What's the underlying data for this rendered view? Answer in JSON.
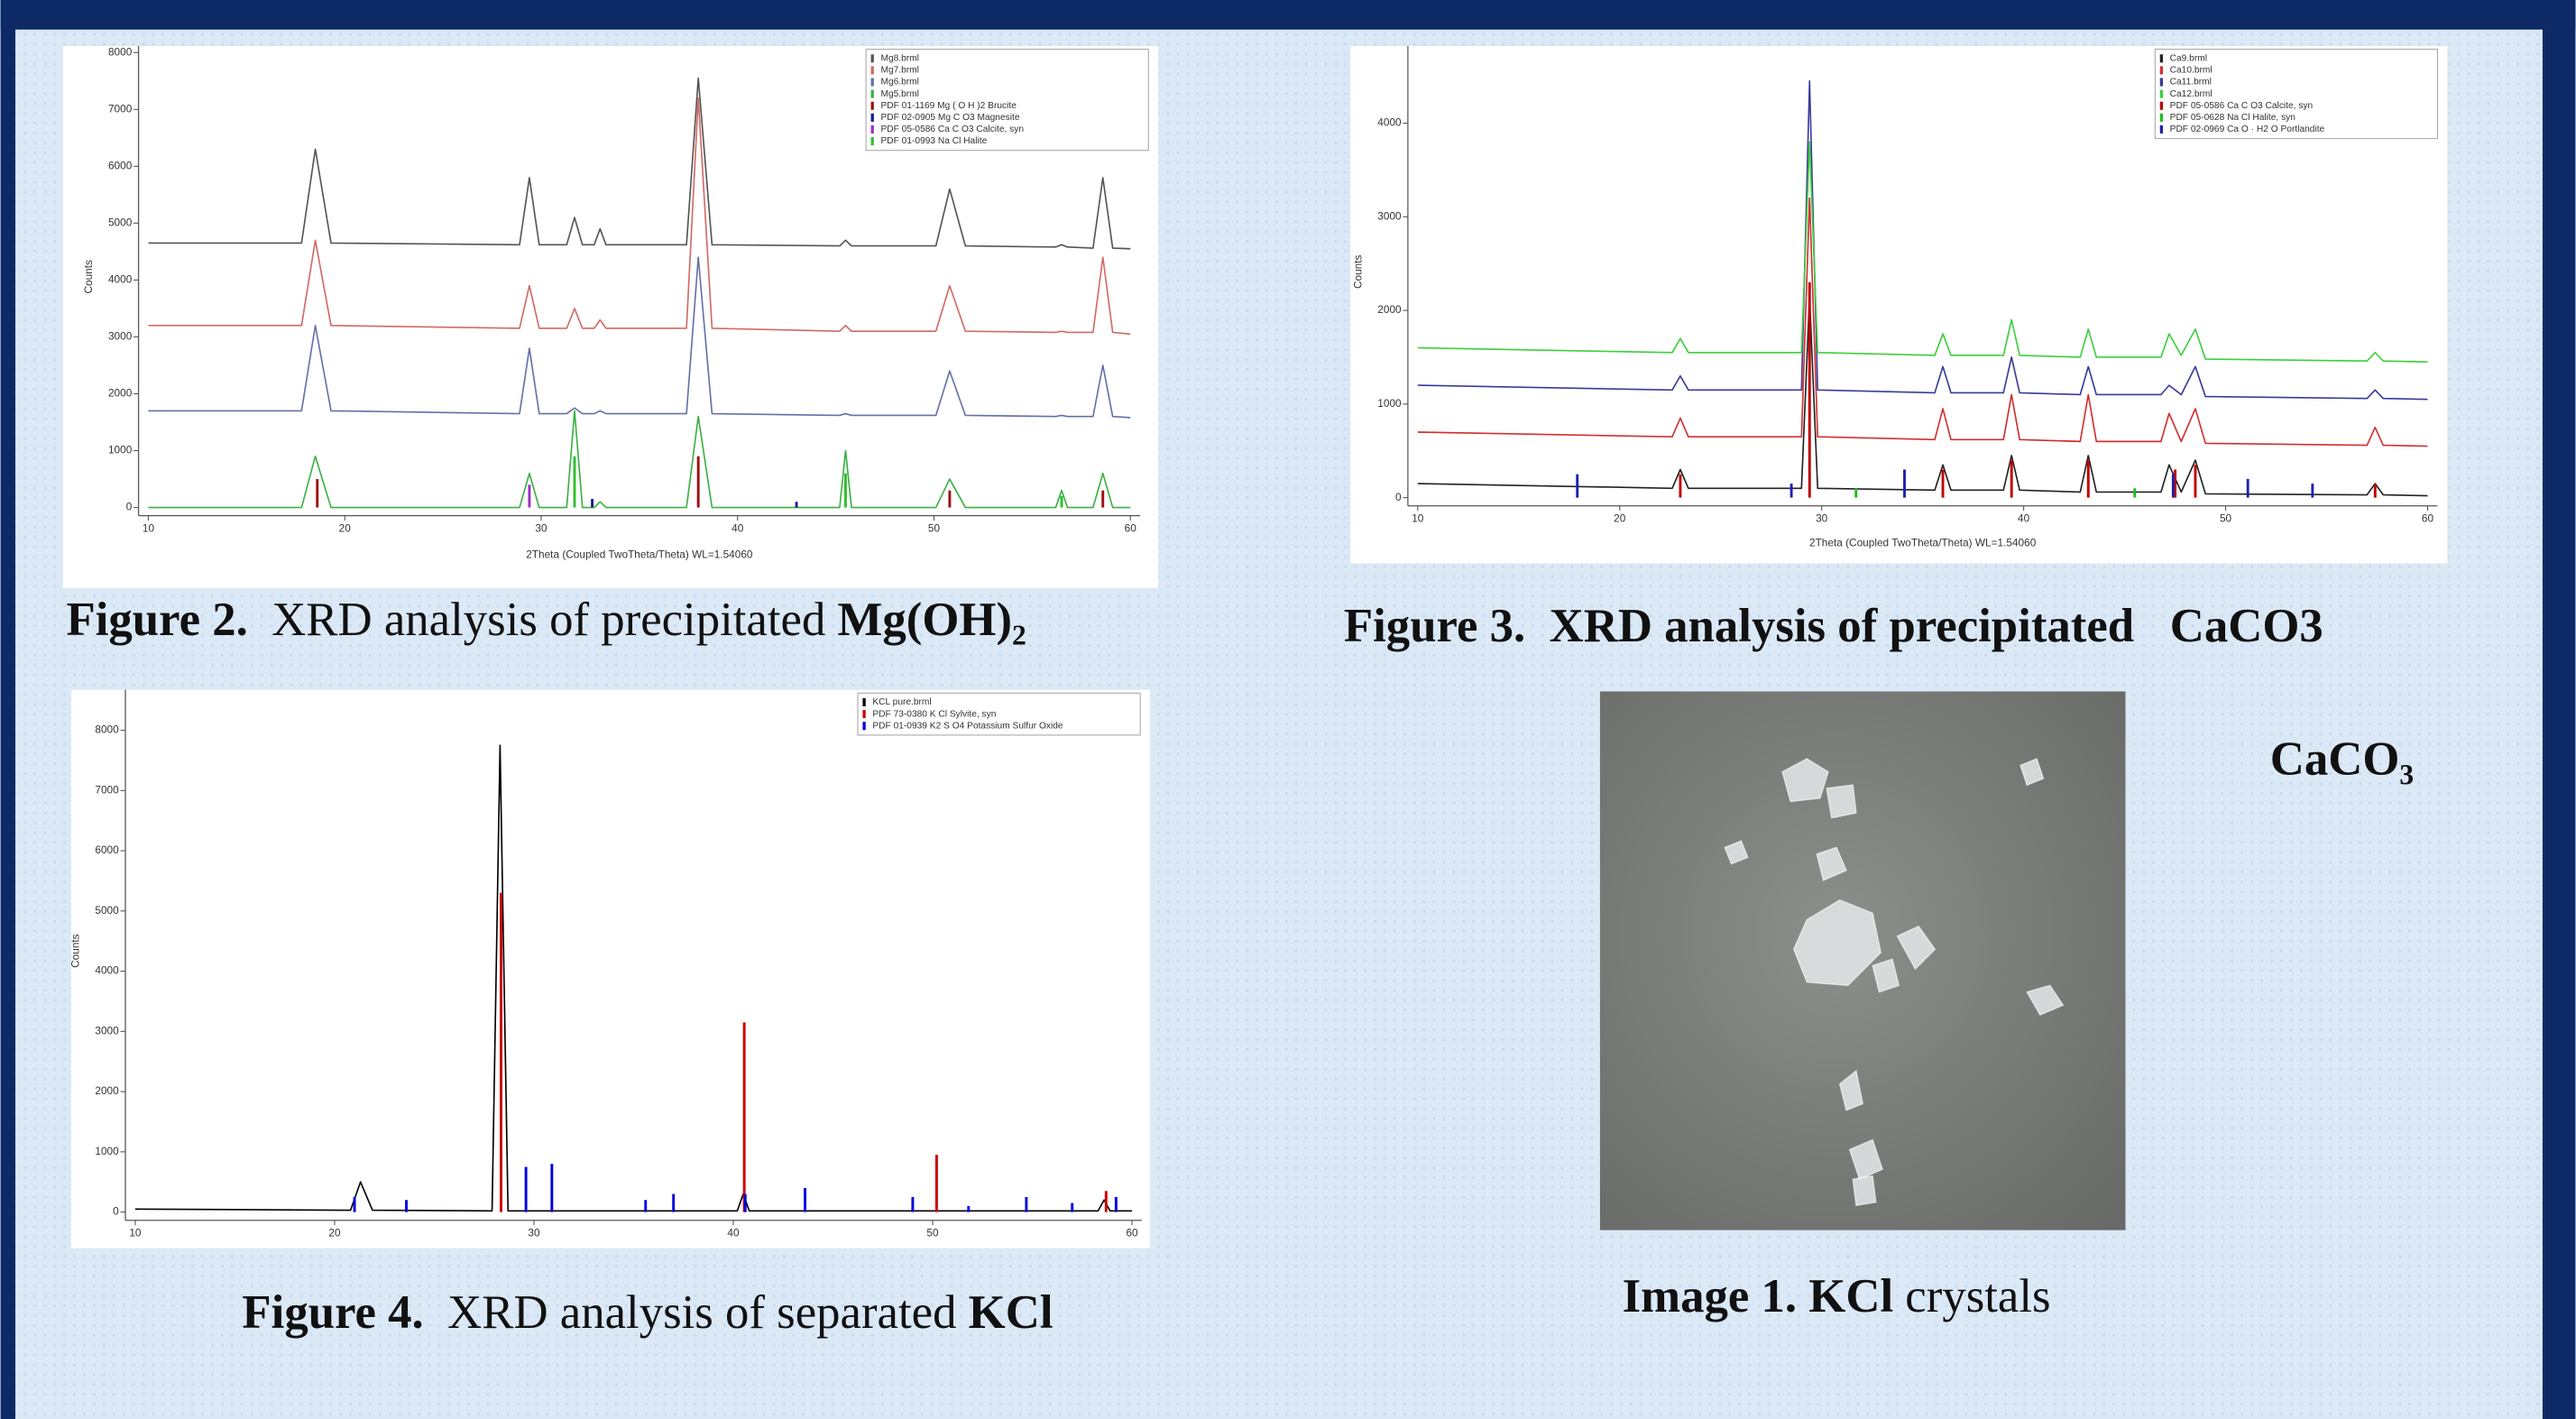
{
  "chart_data": [
    {
      "type": "line",
      "xlabel": "2Theta (Coupled TwoTheta/Theta) WL=1.54060",
      "ylabel": "Counts",
      "xlim": [
        10,
        60
      ],
      "ylim": [
        0,
        8000
      ],
      "xticks": [
        10,
        20,
        30,
        40,
        50,
        60
      ],
      "yticks": [
        0,
        1000,
        2000,
        3000,
        4000,
        5000,
        6000,
        7000,
        8000
      ],
      "legend": "upper right",
      "x": [
        10,
        17.8,
        18.5,
        19.3,
        28.9,
        29.4,
        29.9,
        31.3,
        31.7,
        32.1,
        32.7,
        33,
        33.3,
        37.4,
        38,
        38.7,
        45.2,
        45.5,
        45.8,
        50.1,
        50.8,
        51.6,
        56.2,
        56.5,
        56.8,
        58.1,
        58.6,
        59.1,
        60
      ],
      "series": [
        {
          "name": "Mg8.brml",
          "color": "#555555",
          "style": "line",
          "values": [
            4650,
            4650,
            6300,
            4650,
            4620,
            5800,
            4620,
            4620,
            5100,
            4620,
            4620,
            4900,
            4620,
            4620,
            7550,
            4620,
            4600,
            4700,
            4600,
            4600,
            5600,
            4600,
            4580,
            4620,
            4580,
            4560,
            5800,
            4560,
            4550
          ]
        },
        {
          "name": "Mg7.brml",
          "color": "#d06a66",
          "style": "line",
          "values": [
            3200,
            3200,
            4700,
            3200,
            3150,
            3900,
            3150,
            3150,
            3500,
            3150,
            3150,
            3300,
            3150,
            3150,
            7200,
            3150,
            3100,
            3200,
            3100,
            3100,
            3900,
            3100,
            3080,
            3100,
            3080,
            3080,
            4400,
            3080,
            3050
          ]
        },
        {
          "name": "Mg6.brml",
          "color": "#6670a8",
          "style": "line",
          "values": [
            1700,
            1700,
            3200,
            1700,
            1650,
            2800,
            1650,
            1650,
            1750,
            1650,
            1650,
            1700,
            1650,
            1650,
            4400,
            1650,
            1620,
            1650,
            1620,
            1620,
            2400,
            1620,
            1600,
            1620,
            1600,
            1600,
            2500,
            1600,
            1580
          ]
        },
        {
          "name": "Mg5.brml",
          "color": "#3cb043",
          "style": "line",
          "values": [
            0,
            0,
            900,
            0,
            0,
            600,
            0,
            0,
            1700,
            0,
            0,
            100,
            0,
            0,
            1600,
            0,
            0,
            1000,
            0,
            0,
            500,
            0,
            0,
            300,
            0,
            0,
            600,
            0,
            0
          ]
        },
        {
          "name": "PDF 01-1169 Mg ( O H )2 Brucite",
          "color": "#a01010",
          "style": "sticks",
          "x": [
            18.6,
            38,
            50.8,
            58.6
          ],
          "values": [
            500,
            900,
            300,
            300
          ]
        },
        {
          "name": "PDF 02-0905 Mg C O3 Magnesite",
          "color": "#1a1a8c",
          "style": "sticks",
          "x": [
            32.6,
            43
          ],
          "values": [
            150,
            100
          ]
        },
        {
          "name": "PDF 05-0586 Ca C O3 Calcite, syn",
          "color": "#9b30c0",
          "style": "sticks",
          "x": [
            29.4
          ],
          "values": [
            400
          ]
        },
        {
          "name": "PDF 01-0993 Na Cl Halite",
          "color": "#2ec02e",
          "style": "sticks",
          "x": [
            31.7,
            45.5,
            56.5
          ],
          "values": [
            900,
            600,
            200
          ]
        }
      ],
      "caption": [
        {
          "text": "Figure 2.",
          "bold": true
        },
        {
          "text": "  XRD analysis of precipitated ",
          "bold": false
        },
        {
          "text": "Mg(OH)₂",
          "bold": true
        }
      ]
    },
    {
      "type": "line",
      "xlabel": "2Theta (Coupled TwoTheta/Theta) WL=1.54060",
      "ylabel": "Counts",
      "xlim": [
        10,
        60
      ],
      "ylim": [
        0,
        4800
      ],
      "xticks": [
        10,
        20,
        30,
        40,
        50,
        60
      ],
      "yticks": [
        0,
        1000,
        2000,
        3000,
        4000
      ],
      "legend": "upper right",
      "x": [
        10,
        22.6,
        23,
        23.4,
        29,
        29.4,
        29.8,
        35.6,
        36,
        36.4,
        39,
        39.4,
        39.8,
        42.8,
        43.2,
        43.6,
        46.8,
        47.2,
        47.8,
        48.5,
        49,
        57,
        57.4,
        57.8,
        60
      ],
      "series": [
        {
          "name": "Ca9.brml",
          "color": "#222222",
          "style": "line",
          "values": [
            150,
            100,
            300,
            100,
            100,
            2150,
            100,
            80,
            350,
            80,
            80,
            450,
            80,
            60,
            450,
            60,
            60,
            350,
            60,
            400,
            40,
            30,
            150,
            30,
            20
          ]
        },
        {
          "name": "Ca10.brml",
          "color": "#d03030",
          "style": "line",
          "values": [
            700,
            650,
            850,
            650,
            650,
            3200,
            650,
            620,
            950,
            620,
            620,
            1100,
            620,
            600,
            1100,
            600,
            600,
            900,
            600,
            950,
            580,
            560,
            750,
            560,
            550
          ]
        },
        {
          "name": "Ca11.brml",
          "color": "#3a3a9a",
          "style": "line",
          "values": [
            1200,
            1150,
            1300,
            1150,
            1150,
            4450,
            1150,
            1120,
            1400,
            1120,
            1120,
            1500,
            1120,
            1100,
            1400,
            1100,
            1100,
            1200,
            1100,
            1400,
            1080,
            1060,
            1150,
            1060,
            1050
          ]
        },
        {
          "name": "Ca12.brml",
          "color": "#3ccf3c",
          "style": "line",
          "values": [
            1600,
            1550,
            1700,
            1550,
            1550,
            3800,
            1550,
            1520,
            1750,
            1520,
            1520,
            1900,
            1520,
            1500,
            1800,
            1500,
            1500,
            1750,
            1520,
            1800,
            1480,
            1460,
            1550,
            1460,
            1450
          ]
        },
        {
          "name": "PDF 05-0586 Ca C O3 Calcite, syn",
          "color": "#c00000",
          "style": "sticks",
          "x": [
            23,
            29.4,
            36,
            39.4,
            43.2,
            47.5,
            48.5,
            57.4
          ],
          "values": [
            250,
            2300,
            300,
            400,
            400,
            300,
            350,
            150
          ]
        },
        {
          "name": "PDF 05-0628 Na Cl Halite, syn",
          "color": "#22bb22",
          "style": "sticks",
          "x": [
            31.7,
            45.5
          ],
          "values": [
            100,
            100
          ]
        },
        {
          "name": "PDF 02-0969 Ca O · H2 O Portlandite",
          "color": "#2020b0",
          "style": "sticks",
          "x": [
            17.9,
            28.5,
            34.1,
            47.4,
            51.1,
            54.3
          ],
          "values": [
            250,
            150,
            300,
            250,
            200,
            150
          ]
        }
      ],
      "caption": [
        {
          "text": "Figure 3.  XRD analysis of precipitated   CaCO3",
          "bold": true
        }
      ]
    },
    {
      "type": "line",
      "ylabel": "Counts",
      "xlim": [
        10,
        60
      ],
      "ylim": [
        0,
        8400
      ],
      "xticks": [
        10,
        20,
        30,
        40,
        50,
        60
      ],
      "yticks": [
        0,
        1000,
        2000,
        3000,
        4000,
        5000,
        6000,
        7000,
        8000
      ],
      "legend": "upper right",
      "x": [
        10,
        20.8,
        21.3,
        21.9,
        27.9,
        28.3,
        28.7,
        40.2,
        40.5,
        40.8,
        58.3,
        58.6,
        58.9,
        60
      ],
      "series": [
        {
          "name": "KCL pure.brml",
          "color": "#000000",
          "style": "line",
          "values": [
            50,
            30,
            500,
            30,
            20,
            7750,
            20,
            20,
            300,
            20,
            20,
            200,
            20,
            20
          ]
        },
        {
          "name": "PDF 73-0380 K Cl Sylvite, syn",
          "color": "#cc0000",
          "style": "sticks",
          "x": [
            28.35,
            40.55,
            50.2,
            58.7
          ],
          "values": [
            5300,
            3150,
            950,
            350
          ]
        },
        {
          "name": "PDF 01-0939 K2 S O4 Potassium Sulfur Oxide",
          "color": "#0000dd",
          "style": "sticks",
          "x": [
            21,
            23.6,
            29.6,
            30.9,
            35.6,
            37,
            40.6,
            43.6,
            49,
            51.8,
            54.7,
            57,
            59.2
          ],
          "values": [
            250,
            200,
            750,
            800,
            200,
            300,
            300,
            400,
            250,
            100,
            250,
            150,
            250
          ]
        }
      ],
      "caption": [
        {
          "text": "Figure 4.",
          "bold": true
        },
        {
          "text": "  XRD analysis of separated ",
          "bold": false
        },
        {
          "text": "KCl",
          "bold": true
        }
      ]
    }
  ],
  "image": {
    "caption": [
      {
        "text": "Image 1. KCl",
        "bold": true
      },
      {
        "text": " crystals",
        "bold": false
      }
    ]
  },
  "side_label": "CaCO₃"
}
